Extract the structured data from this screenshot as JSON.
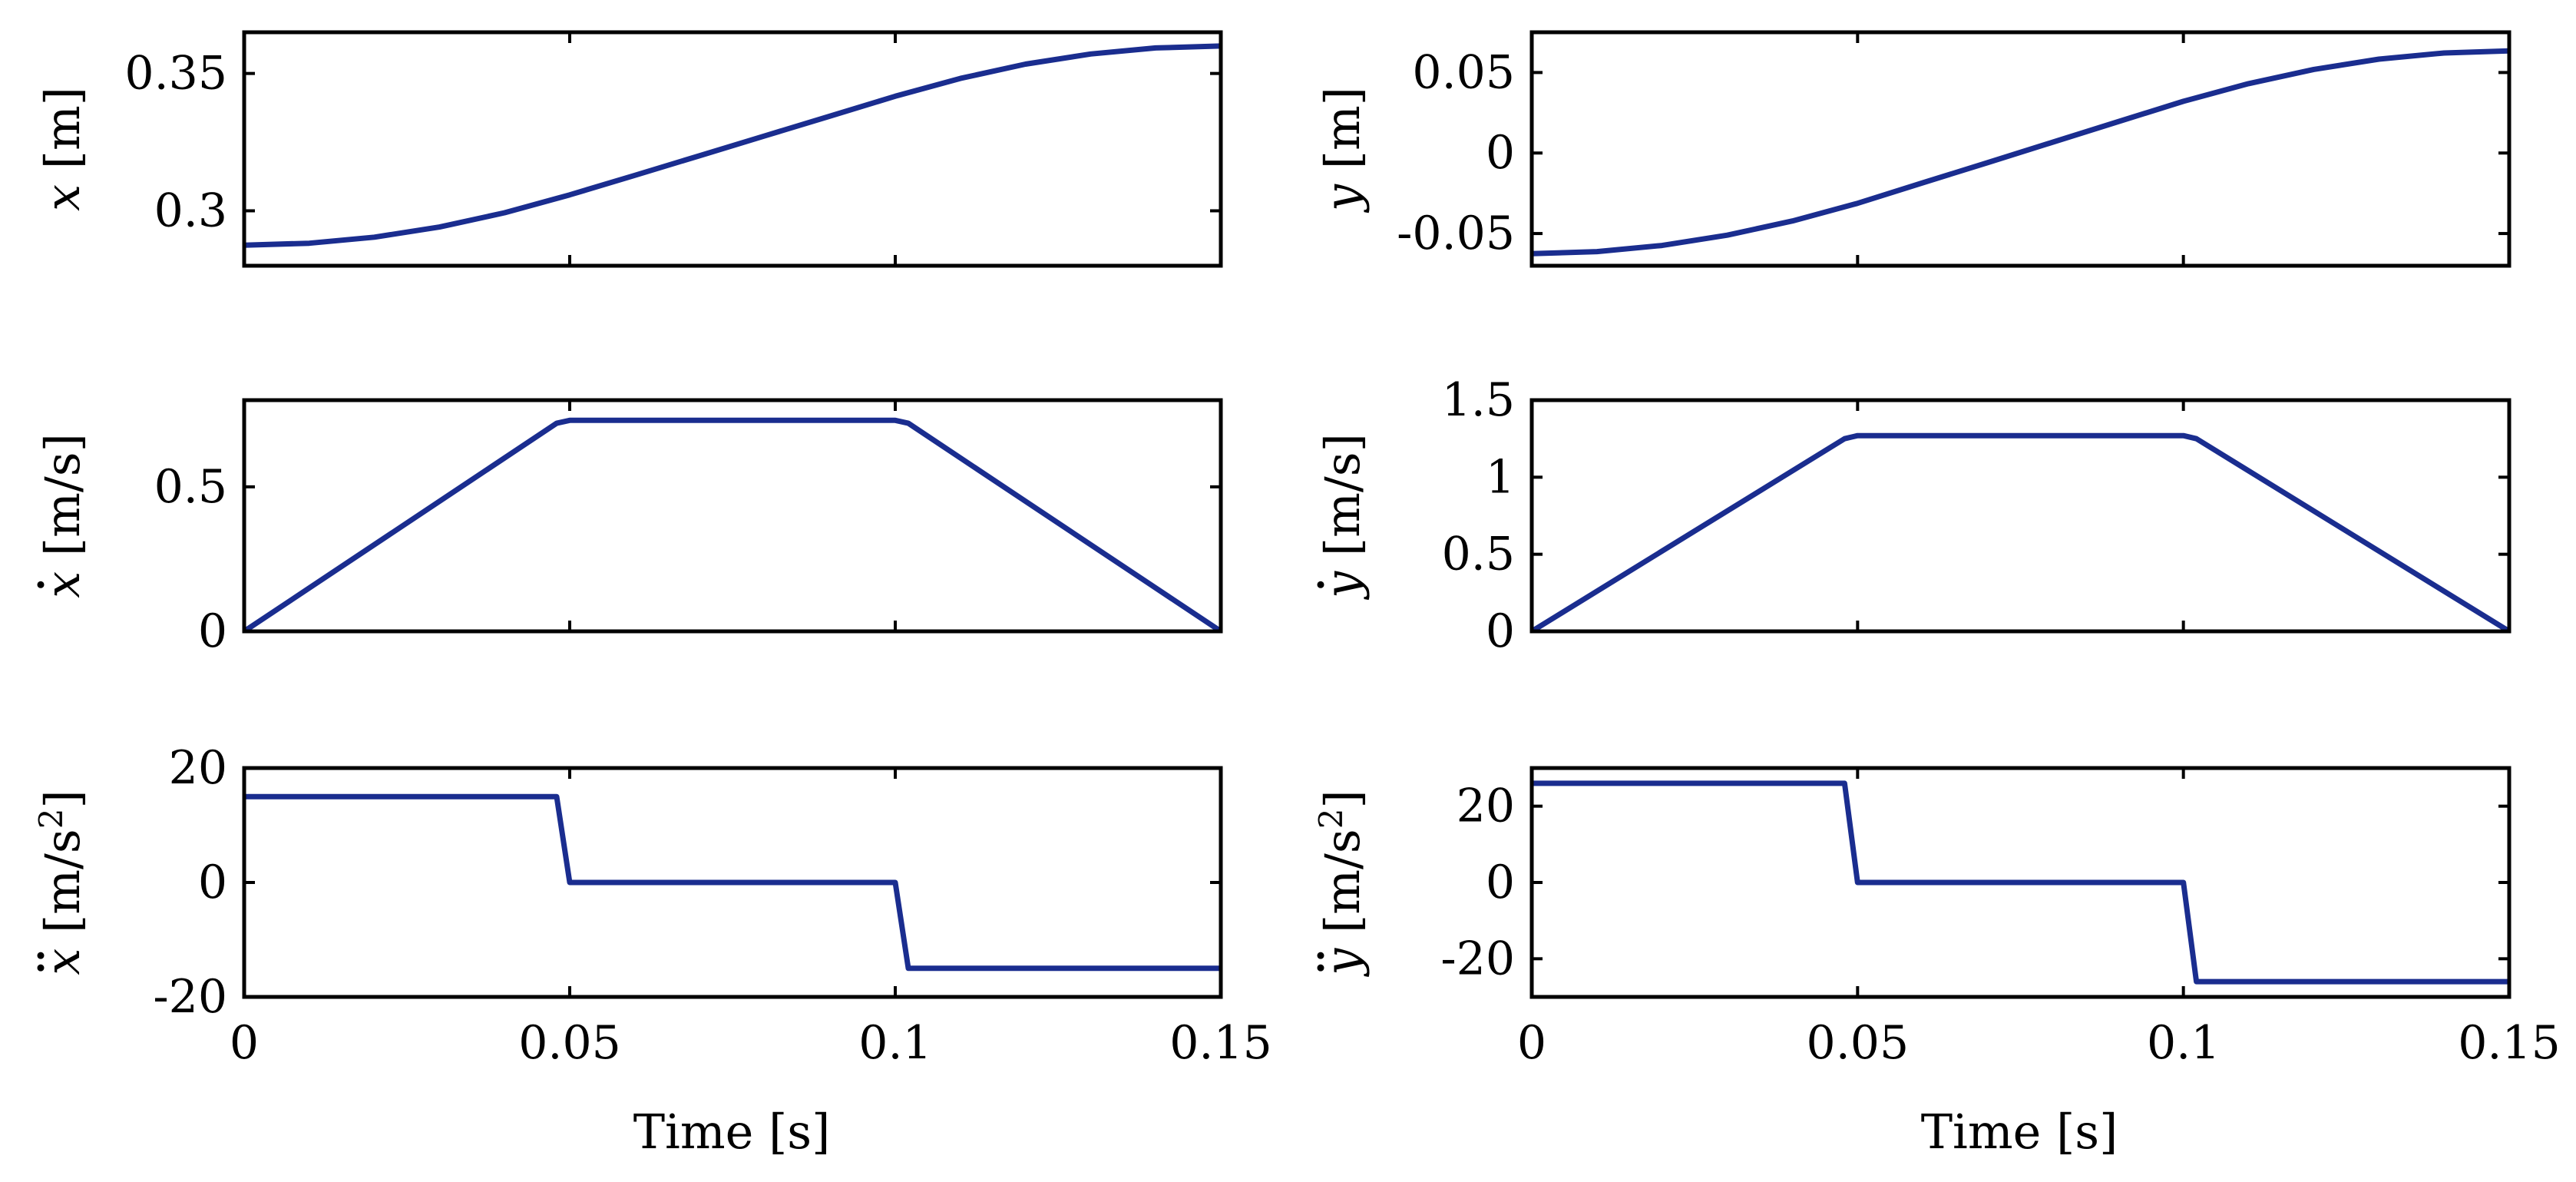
{
  "figure": {
    "line_color": "#1a2d8f",
    "xlabel": "Time [s]"
  },
  "chart_data": [
    {
      "id": "x-pos",
      "type": "line",
      "ylabel": {
        "sym": "x",
        "unit": "[m]"
      },
      "xlim": [
        0,
        0.15
      ],
      "ylim": [
        0.28,
        0.365
      ],
      "xticks": [],
      "yticks": [
        0.3,
        0.35
      ],
      "ytick_labels": [
        "0.3",
        "0.35"
      ],
      "series": [
        {
          "name": "x",
          "x": [
            0,
            0.01,
            0.02,
            0.03,
            0.04,
            0.05,
            0.06,
            0.07,
            0.08,
            0.09,
            0.1,
            0.11,
            0.12,
            0.13,
            0.14,
            0.15
          ],
          "y": [
            0.2875,
            0.2882,
            0.2904,
            0.2941,
            0.2993,
            0.3058,
            0.3129,
            0.3201,
            0.3273,
            0.3345,
            0.3417,
            0.3482,
            0.3534,
            0.3571,
            0.3593,
            0.36
          ]
        }
      ]
    },
    {
      "id": "y-pos",
      "type": "line",
      "ylabel": {
        "sym": "y",
        "unit": "[m]"
      },
      "xlim": [
        0,
        0.15
      ],
      "ylim": [
        -0.07,
        0.075
      ],
      "xticks": [],
      "yticks": [
        -0.05,
        0,
        0.05
      ],
      "ytick_labels": [
        "-0.05",
        "0",
        "0.05"
      ],
      "series": [
        {
          "name": "y",
          "x": [
            0,
            0.01,
            0.02,
            0.03,
            0.04,
            0.05,
            0.06,
            0.07,
            0.08,
            0.09,
            0.1,
            0.11,
            0.12,
            0.13,
            0.14,
            0.15
          ],
          "y": [
            -0.0625,
            -0.0612,
            -0.0574,
            -0.051,
            -0.0422,
            -0.0312,
            -0.0185,
            -0.0059,
            0.0068,
            0.0195,
            0.0321,
            0.0431,
            0.0519,
            0.0583,
            0.0621,
            0.0634
          ]
        }
      ]
    },
    {
      "id": "x-vel",
      "type": "line",
      "ylabel": {
        "sym": "x",
        "dots": 1,
        "unit": "[m/s]"
      },
      "xlim": [
        0,
        0.15
      ],
      "ylim": [
        0,
        0.8
      ],
      "xticks": [],
      "yticks": [
        0,
        0.5
      ],
      "ytick_labels": [
        "0",
        "0.5"
      ],
      "series": [
        {
          "name": "x-dot",
          "x": [
            0,
            0.048,
            0.05,
            0.1,
            0.102,
            0.15
          ],
          "y": [
            0,
            0.72,
            0.73,
            0.73,
            0.72,
            0
          ]
        }
      ]
    },
    {
      "id": "y-vel",
      "type": "line",
      "ylabel": {
        "sym": "y",
        "dots": 1,
        "unit": "[m/s]"
      },
      "xlim": [
        0,
        0.15
      ],
      "ylim": [
        0,
        1.5
      ],
      "xticks": [],
      "yticks": [
        0,
        0.5,
        1,
        1.5
      ],
      "ytick_labels": [
        "0",
        "0.5",
        "1",
        "1.5"
      ],
      "series": [
        {
          "name": "y-dot",
          "x": [
            0,
            0.048,
            0.05,
            0.1,
            0.102,
            0.15
          ],
          "y": [
            0,
            1.25,
            1.27,
            1.27,
            1.25,
            0
          ]
        }
      ]
    },
    {
      "id": "x-acc",
      "type": "line",
      "ylabel": {
        "sym": "x",
        "dots": 2,
        "unit": "[m/s",
        "sup": "2",
        "unit_end": "]"
      },
      "xlim": [
        0,
        0.15
      ],
      "ylim": [
        -20,
        20
      ],
      "xticks": [
        0,
        0.05,
        0.1,
        0.15
      ],
      "xtick_labels": [
        "0",
        "0.05",
        "0.1",
        "0.15"
      ],
      "yticks": [
        -20,
        0,
        20
      ],
      "ytick_labels": [
        "-20",
        "0",
        "20"
      ],
      "series": [
        {
          "name": "x-ddot",
          "x": [
            0,
            0.048,
            0.05,
            0.1,
            0.102,
            0.15
          ],
          "y": [
            15,
            15,
            0,
            0,
            -15,
            -15
          ]
        }
      ]
    },
    {
      "id": "y-acc",
      "type": "line",
      "ylabel": {
        "sym": "y",
        "dots": 2,
        "unit": "[m/s",
        "sup": "2",
        "unit_end": "]"
      },
      "xlim": [
        0,
        0.15
      ],
      "ylim": [
        -30,
        30
      ],
      "xticks": [
        0,
        0.05,
        0.1,
        0.15
      ],
      "xtick_labels": [
        "0",
        "0.05",
        "0.1",
        "0.15"
      ],
      "yticks": [
        -20,
        0,
        20
      ],
      "ytick_labels": [
        "-20",
        "0",
        "20"
      ],
      "series": [
        {
          "name": "y-ddot",
          "x": [
            0,
            0.048,
            0.05,
            0.1,
            0.102,
            0.15
          ],
          "y": [
            26,
            26,
            0,
            0,
            -26,
            -26
          ]
        }
      ]
    }
  ]
}
